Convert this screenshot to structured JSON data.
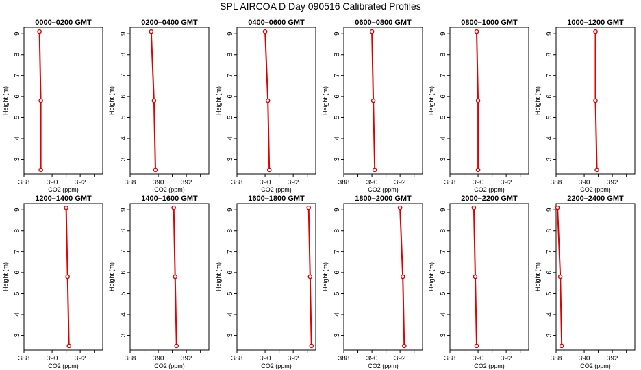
{
  "figure_title": "SPL AIRCOA D  Day 090516  Calibrated Profiles",
  "colors": {
    "line": "#e00000",
    "axis": "#000000"
  },
  "chart_data": [
    {
      "type": "line",
      "title": "0000–0200 GMT",
      "xlabel": "CO2 (ppm)",
      "ylabel": "Height (m)",
      "xlim": [
        388,
        393.6
      ],
      "ylim": [
        2.3,
        9.3
      ],
      "xticks": [
        388,
        390,
        392
      ],
      "yticks": [
        3,
        4,
        5,
        6,
        7,
        8,
        9
      ],
      "x": [
        389.2,
        389.2,
        389.1
      ],
      "y": [
        2.5,
        5.8,
        9.1
      ]
    },
    {
      "type": "line",
      "title": "0200–0400 GMT",
      "xlabel": "CO2 (ppm)",
      "ylabel": "Height (m)",
      "xlim": [
        388,
        393.6
      ],
      "ylim": [
        2.3,
        9.3
      ],
      "xticks": [
        388,
        390,
        392
      ],
      "yticks": [
        3,
        4,
        5,
        6,
        7,
        8,
        9
      ],
      "x": [
        389.8,
        389.7,
        389.5
      ],
      "y": [
        2.5,
        5.8,
        9.1
      ]
    },
    {
      "type": "line",
      "title": "0400–0600 GMT",
      "xlabel": "CO2 (ppm)",
      "ylabel": "Height (m)",
      "xlim": [
        388,
        393.6
      ],
      "ylim": [
        2.3,
        9.3
      ],
      "xticks": [
        388,
        390,
        392
      ],
      "yticks": [
        3,
        4,
        5,
        6,
        7,
        8,
        9
      ],
      "x": [
        390.3,
        390.2,
        390.0
      ],
      "y": [
        2.5,
        5.8,
        9.1
      ]
    },
    {
      "type": "line",
      "title": "0600–0800 GMT",
      "xlabel": "CO2 (ppm)",
      "ylabel": "Height (m)",
      "xlim": [
        388,
        393.6
      ],
      "ylim": [
        2.3,
        9.3
      ],
      "xticks": [
        388,
        390,
        392
      ],
      "yticks": [
        3,
        4,
        5,
        6,
        7,
        8,
        9
      ],
      "x": [
        390.2,
        390.1,
        390.0
      ],
      "y": [
        2.5,
        5.8,
        9.1
      ]
    },
    {
      "type": "line",
      "title": "0800–1000 GMT",
      "xlabel": "CO2 (ppm)",
      "ylabel": "Height (m)",
      "xlim": [
        388,
        393.6
      ],
      "ylim": [
        2.3,
        9.3
      ],
      "xticks": [
        388,
        390,
        392
      ],
      "yticks": [
        3,
        4,
        5,
        6,
        7,
        8,
        9
      ],
      "x": [
        390.0,
        390.0,
        389.9
      ],
      "y": [
        2.5,
        5.8,
        9.1
      ]
    },
    {
      "type": "line",
      "title": "1000–1200 GMT",
      "xlabel": "CO2 (ppm)",
      "ylabel": "Height (m)",
      "xlim": [
        388,
        393.6
      ],
      "ylim": [
        2.3,
        9.3
      ],
      "xticks": [
        388,
        390,
        392
      ],
      "yticks": [
        3,
        4,
        5,
        6,
        7,
        8,
        9
      ],
      "x": [
        390.9,
        390.8,
        390.8
      ],
      "y": [
        2.5,
        5.8,
        9.1
      ]
    },
    {
      "type": "line",
      "title": "1200–1400 GMT",
      "xlabel": "CO2 (ppm)",
      "ylabel": "Height (m)",
      "xlim": [
        388,
        393.6
      ],
      "ylim": [
        2.3,
        9.3
      ],
      "xticks": [
        388,
        390,
        392
      ],
      "yticks": [
        3,
        4,
        5,
        6,
        7,
        8,
        9
      ],
      "x": [
        391.2,
        391.1,
        391.0
      ],
      "y": [
        2.5,
        5.8,
        9.1
      ]
    },
    {
      "type": "line",
      "title": "1400–1600 GMT",
      "xlabel": "CO2 (ppm)",
      "ylabel": "Height (m)",
      "xlim": [
        388,
        393.6
      ],
      "ylim": [
        2.3,
        9.3
      ],
      "xticks": [
        388,
        390,
        392
      ],
      "yticks": [
        3,
        4,
        5,
        6,
        7,
        8,
        9
      ],
      "x": [
        391.3,
        391.2,
        391.1
      ],
      "y": [
        2.5,
        5.8,
        9.1
      ]
    },
    {
      "type": "line",
      "title": "1600–1800 GMT",
      "xlabel": "CO2 (ppm)",
      "ylabel": "Height (m)",
      "xlim": [
        388,
        393.6
      ],
      "ylim": [
        2.3,
        9.3
      ],
      "xticks": [
        388,
        390,
        392
      ],
      "yticks": [
        3,
        4,
        5,
        6,
        7,
        8,
        9
      ],
      "x": [
        393.3,
        393.2,
        393.1
      ],
      "y": [
        2.5,
        5.8,
        9.1
      ]
    },
    {
      "type": "line",
      "title": "1800–2000 GMT",
      "xlabel": "CO2 (ppm)",
      "ylabel": "Height (m)",
      "xlim": [
        388,
        393.6
      ],
      "ylim": [
        2.3,
        9.3
      ],
      "xticks": [
        388,
        390,
        392
      ],
      "yticks": [
        3,
        4,
        5,
        6,
        7,
        8,
        9
      ],
      "x": [
        392.3,
        392.2,
        392.0
      ],
      "y": [
        2.5,
        5.8,
        9.1
      ]
    },
    {
      "type": "line",
      "title": "2000–2200 GMT",
      "xlabel": "CO2 (ppm)",
      "ylabel": "Height (m)",
      "xlim": [
        388,
        393.6
      ],
      "ylim": [
        2.3,
        9.3
      ],
      "xticks": [
        388,
        390,
        392
      ],
      "yticks": [
        3,
        4,
        5,
        6,
        7,
        8,
        9
      ],
      "x": [
        389.9,
        389.8,
        389.7
      ],
      "y": [
        2.5,
        5.8,
        9.1
      ]
    },
    {
      "type": "line",
      "title": "2200–2400 GMT",
      "xlabel": "CO2 (ppm)",
      "ylabel": "Height (m)",
      "xlim": [
        388,
        393.6
      ],
      "ylim": [
        2.3,
        9.3
      ],
      "xticks": [
        388,
        390,
        392
      ],
      "yticks": [
        3,
        4,
        5,
        6,
        7,
        8,
        9
      ],
      "x": [
        388.4,
        388.3,
        388.1
      ],
      "y": [
        2.5,
        5.8,
        9.1
      ]
    }
  ]
}
